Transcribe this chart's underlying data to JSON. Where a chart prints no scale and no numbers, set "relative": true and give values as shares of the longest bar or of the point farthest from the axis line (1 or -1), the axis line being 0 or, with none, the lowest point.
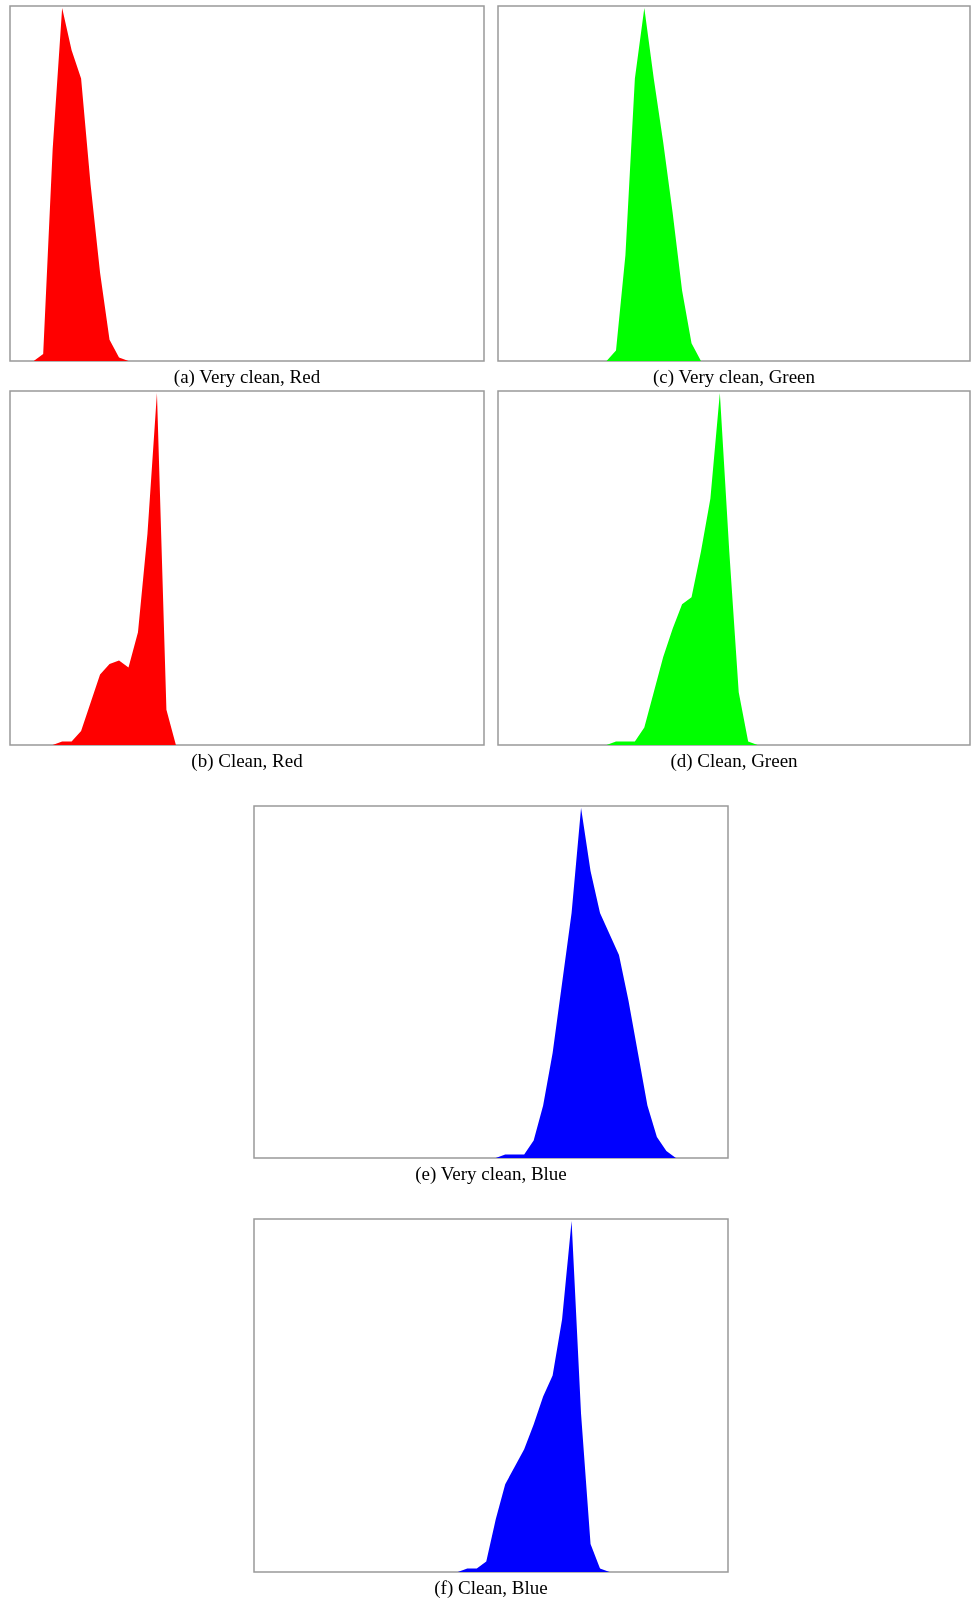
{
  "chart_data": [
    {
      "type": "area",
      "title": "(a) Very clean, Red",
      "relative": true,
      "color": "#ff0000",
      "categories": [
        null,
        null,
        null,
        null,
        null,
        null,
        null,
        null,
        null,
        null,
        null,
        null,
        null,
        null,
        null,
        null,
        null,
        null,
        null,
        null,
        null,
        null,
        null,
        null,
        null,
        null,
        null,
        null,
        null,
        null,
        null,
        null,
        null,
        null,
        null,
        null,
        null,
        null,
        null,
        null,
        null,
        null,
        null,
        null,
        null,
        null,
        null,
        null,
        null,
        null
      ],
      "values": [
        0,
        0,
        0,
        0.02,
        0.6,
        1,
        0.88,
        0.8,
        0.5,
        0.25,
        0.06,
        0.01,
        0,
        0,
        0,
        0,
        0,
        0,
        0,
        0,
        0,
        0,
        0,
        0,
        0,
        0,
        0,
        0,
        0,
        0,
        0,
        0,
        0,
        0,
        0,
        0,
        0,
        0,
        0,
        0,
        0,
        0,
        0,
        0,
        0,
        0,
        0,
        0,
        0,
        0
      ]
    },
    {
      "type": "area",
      "title": "(c) Very clean, Green",
      "relative": true,
      "color": "#00ff00",
      "categories": [
        null,
        null,
        null,
        null,
        null,
        null,
        null,
        null,
        null,
        null,
        null,
        null,
        null,
        null,
        null,
        null,
        null,
        null,
        null,
        null,
        null,
        null,
        null,
        null,
        null,
        null,
        null,
        null,
        null,
        null,
        null,
        null,
        null,
        null,
        null,
        null,
        null,
        null,
        null,
        null,
        null,
        null,
        null,
        null,
        null,
        null,
        null,
        null,
        null,
        null
      ],
      "values": [
        0,
        0,
        0,
        0,
        0,
        0,
        0,
        0,
        0,
        0,
        0,
        0,
        0.03,
        0.3,
        0.8,
        1,
        0.8,
        0.62,
        0.42,
        0.2,
        0.05,
        0,
        0,
        0,
        0,
        0,
        0,
        0,
        0,
        0,
        0,
        0,
        0,
        0,
        0,
        0,
        0,
        0,
        0,
        0,
        0,
        0,
        0,
        0,
        0,
        0,
        0,
        0,
        0,
        0
      ]
    },
    {
      "type": "area",
      "title": "(b) Clean, Red",
      "relative": true,
      "color": "#ff0000",
      "categories": [
        null,
        null,
        null,
        null,
        null,
        null,
        null,
        null,
        null,
        null,
        null,
        null,
        null,
        null,
        null,
        null,
        null,
        null,
        null,
        null,
        null,
        null,
        null,
        null,
        null,
        null,
        null,
        null,
        null,
        null,
        null,
        null,
        null,
        null,
        null,
        null,
        null,
        null,
        null,
        null,
        null,
        null,
        null,
        null,
        null,
        null,
        null,
        null,
        null,
        null
      ],
      "values": [
        0,
        0,
        0,
        0,
        0,
        0.01,
        0.01,
        0.04,
        0.12,
        0.2,
        0.23,
        0.24,
        0.22,
        0.32,
        0.6,
        1,
        0.1,
        0,
        0,
        0,
        0,
        0,
        0,
        0,
        0,
        0,
        0,
        0,
        0,
        0,
        0,
        0,
        0,
        0,
        0,
        0,
        0,
        0,
        0,
        0,
        0,
        0,
        0,
        0,
        0,
        0,
        0,
        0,
        0,
        0
      ]
    },
    {
      "type": "area",
      "title": "(d) Clean, Green",
      "relative": true,
      "color": "#00ff00",
      "categories": [
        null,
        null,
        null,
        null,
        null,
        null,
        null,
        null,
        null,
        null,
        null,
        null,
        null,
        null,
        null,
        null,
        null,
        null,
        null,
        null,
        null,
        null,
        null,
        null,
        null,
        null,
        null,
        null,
        null,
        null,
        null,
        null,
        null,
        null,
        null,
        null,
        null,
        null,
        null,
        null,
        null,
        null,
        null,
        null,
        null,
        null,
        null,
        null,
        null,
        null
      ],
      "values": [
        0,
        0,
        0,
        0,
        0,
        0,
        0,
        0,
        0,
        0,
        0,
        0,
        0.01,
        0.01,
        0.01,
        0.05,
        0.15,
        0.25,
        0.33,
        0.4,
        0.42,
        0.55,
        0.7,
        1,
        0.55,
        0.15,
        0.01,
        0,
        0,
        0,
        0,
        0,
        0,
        0,
        0,
        0,
        0,
        0,
        0,
        0,
        0,
        0,
        0,
        0,
        0,
        0,
        0,
        0,
        0,
        0
      ]
    },
    {
      "type": "area",
      "title": "(e) Very clean, Blue",
      "relative": true,
      "color": "#0000ff",
      "categories": [
        null,
        null,
        null,
        null,
        null,
        null,
        null,
        null,
        null,
        null,
        null,
        null,
        null,
        null,
        null,
        null,
        null,
        null,
        null,
        null,
        null,
        null,
        null,
        null,
        null,
        null,
        null,
        null,
        null,
        null,
        null,
        null,
        null,
        null,
        null,
        null,
        null,
        null,
        null,
        null,
        null,
        null,
        null,
        null,
        null,
        null,
        null,
        null,
        null,
        null
      ],
      "values": [
        0,
        0,
        0,
        0,
        0,
        0,
        0,
        0,
        0,
        0,
        0,
        0,
        0,
        0,
        0,
        0,
        0,
        0,
        0,
        0,
        0,
        0,
        0,
        0,
        0,
        0,
        0.01,
        0.01,
        0.01,
        0.05,
        0.15,
        0.3,
        0.5,
        0.7,
        1,
        0.82,
        0.7,
        0.64,
        0.58,
        0.45,
        0.3,
        0.15,
        0.06,
        0.02,
        0,
        0,
        0,
        0,
        0,
        0
      ]
    },
    {
      "type": "area",
      "title": "(f) Clean, Blue",
      "relative": true,
      "color": "#0000ff",
      "categories": [
        null,
        null,
        null,
        null,
        null,
        null,
        null,
        null,
        null,
        null,
        null,
        null,
        null,
        null,
        null,
        null,
        null,
        null,
        null,
        null,
        null,
        null,
        null,
        null,
        null,
        null,
        null,
        null,
        null,
        null,
        null,
        null,
        null,
        null,
        null,
        null,
        null,
        null,
        null,
        null,
        null,
        null,
        null,
        null,
        null,
        null,
        null,
        null,
        null,
        null
      ],
      "values": [
        0,
        0,
        0,
        0,
        0,
        0,
        0,
        0,
        0,
        0,
        0,
        0,
        0,
        0,
        0,
        0,
        0,
        0,
        0,
        0,
        0,
        0,
        0.01,
        0.01,
        0.03,
        0.15,
        0.25,
        0.3,
        0.35,
        0.42,
        0.5,
        0.56,
        0.72,
        1,
        0.45,
        0.08,
        0.01,
        0,
        0,
        0,
        0,
        0,
        0,
        0,
        0,
        0,
        0,
        0,
        0,
        0
      ]
    }
  ]
}
